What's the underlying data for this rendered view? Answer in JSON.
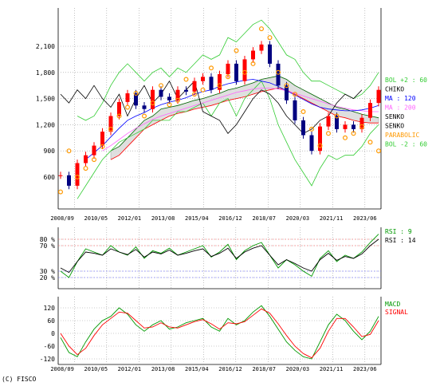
{
  "copyright": "(C) FISCO",
  "colors": {
    "candle_up": "#ff0000",
    "candle_down": "#000080",
    "ma": "#0000ff",
    "chiko": "#000000",
    "bol": "#33cc33",
    "parabolic": "#ff9900",
    "cloud": "#808080",
    "rsi9": "#009900",
    "rsi14": "#000000",
    "macd": "#009900",
    "signal": "#ff0000"
  },
  "chart_data": [
    {
      "type": "line",
      "panel": "price",
      "yticks": [
        "600",
        "900",
        "1,200",
        "1,500",
        "1,800",
        "2,100"
      ],
      "ylim": [
        430,
        2400
      ],
      "x_labels": [
        "2008/09",
        "2010/05",
        "2012/01",
        "2013/08",
        "2015/04",
        "2016/12",
        "2018/07",
        "2020/03",
        "2021/11",
        "2023/06"
      ],
      "legend": [
        {
          "label": "BOL +2 : 60",
          "color": "#33cc33"
        },
        {
          "label": "CHIKO",
          "color": "#000000"
        },
        {
          "label": "MA : 120",
          "color": "#0000ff"
        },
        {
          "label": "MA : 200",
          "color": "#ff66ff"
        },
        {
          "label": "SENKO",
          "color": "#000000"
        },
        {
          "label": "SENKO",
          "color": "#000000"
        },
        {
          "label": "PARABOLIC",
          "color": "#ff9900"
        },
        {
          "label": "BOL -2 : 60",
          "color": "#33cc33"
        }
      ],
      "series": [
        {
          "name": "CLOSE",
          "values": [
            620,
            500,
            760,
            850,
            960,
            1120,
            1300,
            1460,
            1560,
            1420,
            1380,
            1600,
            1520,
            1480,
            1600,
            1580,
            1700,
            1750,
            1600,
            1780,
            1900,
            1700,
            1950,
            2050,
            2120,
            1900,
            1650,
            1480,
            1250,
            1080,
            900,
            1180,
            1300,
            1150,
            1200,
            1150,
            1280,
            1450,
            1600
          ]
        },
        {
          "name": "MA : 120",
          "values": [
            null,
            null,
            null,
            800,
            880,
            960,
            1060,
            1160,
            1250,
            1300,
            1340,
            1390,
            1430,
            1460,
            1480,
            1510,
            1550,
            1580,
            1600,
            1640,
            1670,
            1690,
            1710,
            1720,
            1700,
            1680,
            1640,
            1590,
            1540,
            1490,
            1440,
            1400,
            1380,
            1370,
            1360,
            1360,
            1370,
            1390,
            1420
          ]
        },
        {
          "name": "MA : 200",
          "values": [
            null,
            null,
            null,
            null,
            null,
            900,
            960,
            1030,
            1100,
            1160,
            1210,
            1260,
            1300,
            1330,
            1360,
            1390,
            1420,
            1450,
            1480,
            1510,
            1540,
            1570,
            1590,
            1610,
            1620,
            1620,
            1610,
            1590,
            1560,
            1530,
            1500,
            1470,
            1440,
            1410,
            1390,
            1370,
            1360,
            1350,
            1350
          ]
        },
        {
          "name": "CHIKO",
          "values": [
            1550,
            1450,
            1600,
            1500,
            1650,
            1500,
            1400,
            1550,
            1300,
            1500,
            1650,
            1450,
            1550,
            1700,
            1500,
            1600,
            1700,
            1350,
            1300,
            1250,
            1100,
            1200,
            1350,
            1500,
            1600,
            1550,
            1450,
            1300,
            1200,
            1100,
            1150,
            1250,
            1300,
            1450,
            1550,
            1500,
            1600,
            null,
            null
          ]
        },
        {
          "name": "BOL +2 : 60",
          "values": [
            null,
            null,
            1300,
            1250,
            1300,
            1450,
            1650,
            1800,
            1900,
            1800,
            1700,
            1800,
            1850,
            1750,
            1850,
            1800,
            1900,
            2000,
            1950,
            2000,
            2200,
            2150,
            2250,
            2350,
            2400,
            2300,
            2150,
            2000,
            1950,
            1800,
            1700,
            1700,
            1650,
            1600,
            1550,
            1500,
            1550,
            1650,
            1800
          ]
        },
        {
          "name": "BOL -2 : 60",
          "values": [
            null,
            null,
            350,
            500,
            650,
            800,
            900,
            1000,
            1050,
            1100,
            1150,
            1250,
            1250,
            1250,
            1350,
            1350,
            1400,
            1450,
            1300,
            1450,
            1500,
            1300,
            1500,
            1600,
            1700,
            1500,
            1200,
            1000,
            800,
            650,
            500,
            700,
            850,
            800,
            850,
            850,
            950,
            1100,
            1200
          ]
        },
        {
          "name": "PARABOLIC",
          "values": [
            430,
            900,
            600,
            700,
            800,
            950,
            1150,
            1300,
            1400,
            1560,
            1300,
            1450,
            1650,
            1430,
            1480,
            1720,
            1550,
            1600,
            1850,
            1650,
            1750,
            2050,
            1800,
            1900,
            2300,
            2200,
            1800,
            1650,
            1550,
            1350,
            1150,
            960,
            1100,
            1300,
            1050,
            1100,
            1180,
            1000,
            900
          ]
        },
        {
          "name": "SENKO",
          "values": [
            null,
            null,
            null,
            null,
            null,
            null,
            900,
            950,
            1050,
            1150,
            1250,
            1300,
            1380,
            1400,
            1420,
            1450,
            1480,
            1500,
            1530,
            1560,
            1600,
            1620,
            1650,
            1680,
            1720,
            1740,
            1760,
            1720,
            1650,
            1600,
            1550,
            1500,
            1450,
            1400,
            1380,
            1350,
            1320,
            1300,
            1280
          ]
        },
        {
          "name": "SENKO",
          "values": [
            null,
            null,
            null,
            null,
            null,
            null,
            800,
            850,
            950,
            1050,
            1150,
            1200,
            1250,
            1300,
            1330,
            1350,
            1380,
            1400,
            1420,
            1450,
            1480,
            1500,
            1520,
            1550,
            1580,
            1600,
            1620,
            1600,
            1550,
            1500,
            1450,
            1400,
            1350,
            1300,
            1280,
            1250,
            1230,
            1220,
            1220
          ]
        }
      ]
    },
    {
      "type": "line",
      "panel": "rsi",
      "yticks": [
        "20 %",
        "30 %",
        "70 %",
        "80 %"
      ],
      "ylim": [
        10,
        95
      ],
      "legend": [
        {
          "label": "RSI : 9",
          "color": "#009900"
        },
        {
          "label": "RSI : 14",
          "color": "#000000"
        }
      ],
      "series": [
        {
          "name": "RSI : 9",
          "values": [
            30,
            20,
            45,
            65,
            60,
            55,
            70,
            60,
            55,
            68,
            50,
            62,
            58,
            66,
            55,
            60,
            65,
            70,
            52,
            60,
            72,
            48,
            62,
            70,
            75,
            55,
            35,
            48,
            40,
            30,
            22,
            50,
            62,
            45,
            55,
            50,
            60,
            75,
            88
          ]
        },
        {
          "name": "RSI : 14",
          "values": [
            35,
            28,
            45,
            60,
            58,
            55,
            65,
            60,
            56,
            64,
            52,
            60,
            57,
            63,
            55,
            58,
            62,
            65,
            53,
            58,
            66,
            50,
            60,
            66,
            70,
            55,
            40,
            48,
            42,
            35,
            30,
            48,
            58,
            47,
            53,
            50,
            57,
            70,
            80
          ]
        }
      ]
    },
    {
      "type": "line",
      "panel": "macd",
      "yticks": [
        "-120",
        "-60",
        "0",
        "60",
        "120"
      ],
      "ylim": [
        -135,
        140
      ],
      "legend": [
        {
          "label": "MACD",
          "color": "#009900"
        },
        {
          "label": "SIGNAL",
          "color": "#ff0000"
        }
      ],
      "series": [
        {
          "name": "MACD",
          "values": [
            -20,
            -90,
            -110,
            -40,
            20,
            60,
            80,
            120,
            90,
            40,
            10,
            40,
            60,
            20,
            30,
            50,
            60,
            70,
            30,
            10,
            70,
            40,
            60,
            100,
            130,
            80,
            20,
            -40,
            -80,
            -110,
            -120,
            -40,
            40,
            90,
            60,
            10,
            -30,
            10,
            80
          ]
        },
        {
          "name": "SIGNAL",
          "values": [
            0,
            -60,
            -100,
            -70,
            -10,
            40,
            70,
            100,
            95,
            60,
            25,
            30,
            50,
            30,
            25,
            40,
            55,
            65,
            45,
            20,
            50,
            45,
            55,
            85,
            115,
            95,
            45,
            -10,
            -60,
            -95,
            -115,
            -70,
            10,
            70,
            70,
            30,
            -15,
            -5,
            60
          ]
        }
      ]
    }
  ]
}
